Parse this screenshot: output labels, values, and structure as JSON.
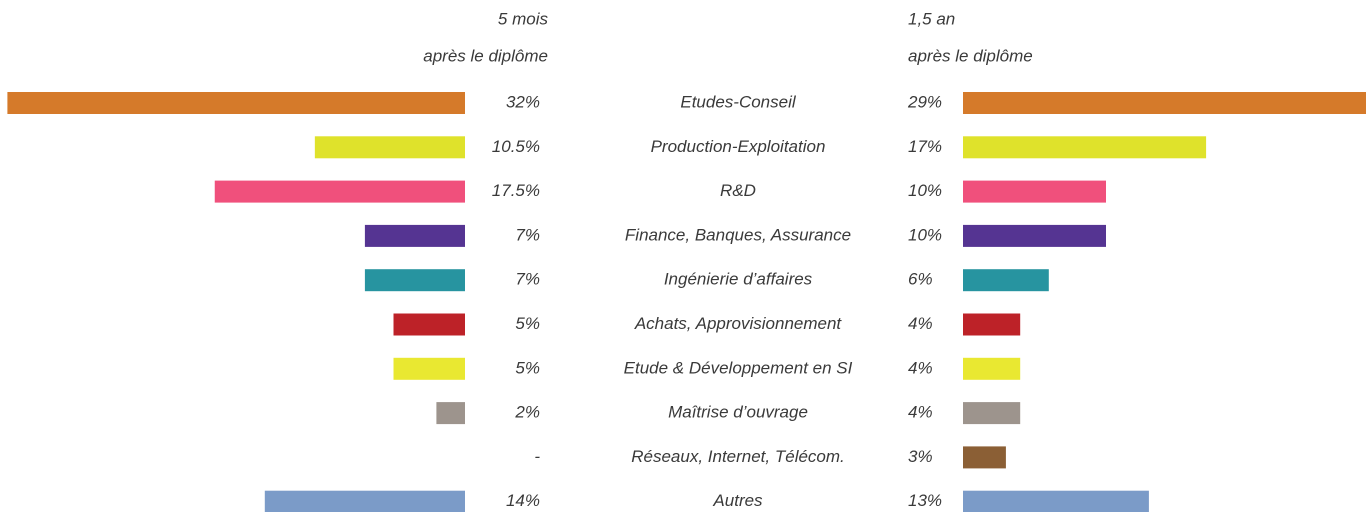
{
  "chart_data": {
    "type": "butterfly",
    "categories": [
      "Etudes-Conseil",
      "Production-Exploitation",
      "R&D",
      "Finance, Banques, Assurance",
      "Ingénierie d’affaires",
      "Achats, Approvisionnement",
      "Etude & Développement en SI",
      "Maîtrise d’ouvrage",
      "Réseaux, Internet, Télécom.",
      "Autres"
    ],
    "colors": [
      "#d57a2a",
      "#dfe22b",
      "#f0507c",
      "#553492",
      "#2794a0",
      "#bd2228",
      "#e9e831",
      "#9d948d",
      "#8b5f35",
      "#7b9bc8"
    ],
    "series": [
      {
        "name": "5 mois",
        "note": "après le diplôme",
        "values": [
          32,
          10.5,
          17.5,
          7,
          7,
          5,
          5,
          2,
          null,
          14
        ],
        "value_labels": [
          "32%",
          "10.5%",
          "17.5%",
          "7%",
          "7%",
          "5%",
          "5%",
          "2%",
          "-",
          "14%"
        ]
      },
      {
        "name": "1,5 an",
        "note": "après le diplôme",
        "values": [
          29,
          17,
          10,
          10,
          6,
          4,
          4,
          4,
          3,
          13
        ],
        "value_labels": [
          "29%",
          "17%",
          "10%",
          "10%",
          "6%",
          "4%",
          "4%",
          "4%",
          "3%",
          "13%"
        ]
      }
    ]
  }
}
